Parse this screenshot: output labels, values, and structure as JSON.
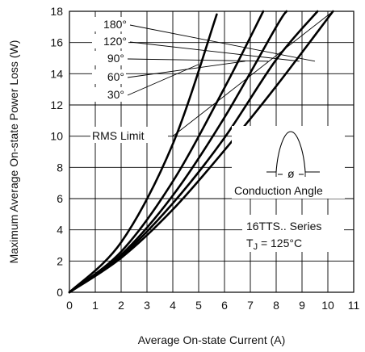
{
  "chart_data": {
    "type": "line",
    "xlabel": "Average On-state Current (A)",
    "ylabel": "Maximum Average On-state Power Loss (W)",
    "xlim": [
      0,
      11
    ],
    "ylim": [
      0,
      18
    ],
    "x_ticks": [
      "0",
      "1",
      "2",
      "3",
      "4",
      "5",
      "6",
      "7",
      "8",
      "9",
      "10",
      "11"
    ],
    "y_ticks": [
      "0",
      "2",
      "4",
      "6",
      "8",
      "10",
      "12",
      "14",
      "16",
      "18"
    ],
    "grid": true,
    "series": [
      {
        "name": "180°",
        "x": [
          0,
          2,
          4,
          6,
          8,
          10.2
        ],
        "y": [
          0,
          2.2,
          5.3,
          9.1,
          13.2,
          18
        ]
      },
      {
        "name": "120°",
        "x": [
          0,
          2,
          4,
          6,
          8,
          9.6
        ],
        "y": [
          0,
          2.3,
          5.7,
          9.9,
          14.9,
          18
        ]
      },
      {
        "name": "90°",
        "x": [
          0,
          2,
          4,
          6,
          8,
          8.4
        ],
        "y": [
          0,
          2.4,
          6.2,
          11.2,
          17.0,
          18
        ]
      },
      {
        "name": "60°",
        "x": [
          0,
          2,
          4,
          6,
          7.5
        ],
        "y": [
          0,
          2.6,
          7.1,
          13.1,
          18
        ]
      },
      {
        "name": "30°",
        "x": [
          0,
          2,
          4,
          5.7
        ],
        "y": [
          0,
          3.2,
          9.5,
          17.8
        ]
      }
    ],
    "rms_limit": {
      "label": "RMS Limit",
      "x": [
        4.0,
        10.2
      ],
      "y": [
        10.0,
        18.0
      ]
    },
    "annotations": {
      "conduction_angle": "Conduction Angle",
      "phi_symbol": "ø",
      "series_line1": "16TTS.. Series",
      "temp_T": "T",
      "temp_sub": "J",
      "temp_value": " = 125°C"
    }
  }
}
